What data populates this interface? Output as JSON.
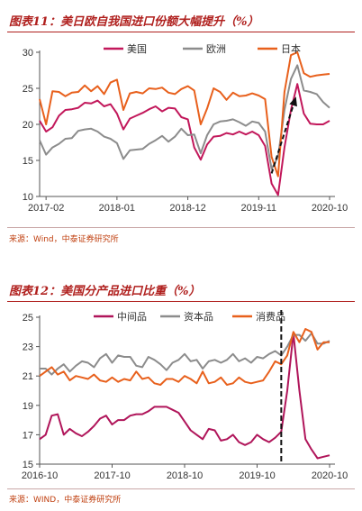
{
  "charts": [
    {
      "title": "图表11：美日欧自我国进口份额大幅提升（%）",
      "source": "来源：Wind，中泰证券研究所",
      "chart_data": {
        "type": "line",
        "ylim": [
          10,
          30
        ],
        "yticks": [
          10,
          15,
          20,
          25,
          30
        ],
        "xtick_labels": [
          "2017-02",
          "2018-01",
          "2018-12",
          "2019-11",
          "2020-10"
        ],
        "x": [
          "2017-01",
          "2017-02",
          "2017-03",
          "2017-04",
          "2017-05",
          "2017-06",
          "2017-07",
          "2017-08",
          "2017-09",
          "2017-10",
          "2017-11",
          "2017-12",
          "2018-01",
          "2018-02",
          "2018-03",
          "2018-04",
          "2018-05",
          "2018-06",
          "2018-07",
          "2018-08",
          "2018-09",
          "2018-10",
          "2018-11",
          "2018-12",
          "2019-01",
          "2019-02",
          "2019-03",
          "2019-04",
          "2019-05",
          "2019-06",
          "2019-07",
          "2019-08",
          "2019-09",
          "2019-10",
          "2019-11",
          "2019-12",
          "2020-01",
          "2020-02",
          "2020-03",
          "2020-04",
          "2020-05",
          "2020-06",
          "2020-07",
          "2020-08",
          "2020-09",
          "2020-10"
        ],
        "series": [
          {
            "name": "美国",
            "color": "#c2185b",
            "values": [
              20.5,
              19.0,
              19.6,
              21.2,
              22.0,
              22.1,
              22.3,
              23.0,
              22.9,
              23.3,
              22.5,
              22.8,
              21.5,
              19.3,
              20.8,
              21.2,
              21.6,
              22.1,
              22.5,
              21.8,
              22.3,
              22.2,
              21.0,
              20.7,
              16.8,
              15.1,
              17.2,
              18.3,
              18.4,
              18.8,
              18.6,
              19.0,
              18.6,
              19.0,
              18.5,
              17.0,
              11.8,
              10.2,
              16.8,
              22.0,
              25.6,
              21.5,
              20.1,
              20.0,
              20.0,
              20.5
            ]
          },
          {
            "name": "欧洲",
            "color": "#8c8c8c",
            "values": [
              17.8,
              15.8,
              16.8,
              17.3,
              18.0,
              18.1,
              19.1,
              19.3,
              19.4,
              19.0,
              18.3,
              18.0,
              17.4,
              15.2,
              16.4,
              16.5,
              16.6,
              17.3,
              17.8,
              18.4,
              17.6,
              18.3,
              19.4,
              18.5,
              18.6,
              16.0,
              18.5,
              20.0,
              20.4,
              20.5,
              20.7,
              20.3,
              19.8,
              20.4,
              20.2,
              19.0,
              13.8,
              15.5,
              22.0,
              26.3,
              28.2,
              24.7,
              24.5,
              24.2,
              23.1,
              22.3
            ]
          },
          {
            "name": "日本",
            "color": "#e8601c",
            "values": [
              23.5,
              20.0,
              24.6,
              24.5,
              23.9,
              24.4,
              24.5,
              25.4,
              24.6,
              25.3,
              24.2,
              25.8,
              26.2,
              22.0,
              24.3,
              24.5,
              24.3,
              25.0,
              24.9,
              25.1,
              24.4,
              24.2,
              24.9,
              25.3,
              24.7,
              20.0,
              22.2,
              25.0,
              24.5,
              23.4,
              24.4,
              23.9,
              24.0,
              24.3,
              24.0,
              23.5,
              15.5,
              12.8,
              24.5,
              29.6,
              30.0,
              27.1,
              26.6,
              26.8,
              26.9,
              27.0
            ]
          }
        ],
        "annotations": [
          "dashed-arrow"
        ]
      }
    },
    {
      "title": "图表12：美国分产品进口比重（%）",
      "source": "来源：WIND，中泰证券研究所",
      "chart_data": {
        "type": "line",
        "ylim": [
          15,
          25
        ],
        "yticks": [
          15,
          17,
          19,
          21,
          23,
          25
        ],
        "xtick_labels": [
          "2016-10",
          "2017-10",
          "2018-10",
          "2019-10",
          "2020-10"
        ],
        "x": [
          "2016-10",
          "2016-11",
          "2016-12",
          "2017-01",
          "2017-02",
          "2017-03",
          "2017-04",
          "2017-05",
          "2017-06",
          "2017-07",
          "2017-08",
          "2017-09",
          "2017-10",
          "2017-11",
          "2017-12",
          "2018-01",
          "2018-02",
          "2018-03",
          "2018-04",
          "2018-05",
          "2018-06",
          "2018-07",
          "2018-08",
          "2018-09",
          "2018-10",
          "2018-11",
          "2018-12",
          "2019-01",
          "2019-02",
          "2019-03",
          "2019-04",
          "2019-05",
          "2019-06",
          "2019-07",
          "2019-08",
          "2019-09",
          "2019-10",
          "2019-11",
          "2019-12",
          "2020-01",
          "2020-02",
          "2020-03",
          "2020-04",
          "2020-05",
          "2020-06",
          "2020-07",
          "2020-08",
          "2020-09",
          "2020-10"
        ],
        "series": [
          {
            "name": "中间品",
            "color": "#b0155a",
            "values": [
              16.7,
              17.0,
              18.3,
              18.4,
              17.0,
              17.4,
              17.1,
              16.9,
              17.2,
              17.6,
              18.1,
              18.3,
              17.7,
              18.0,
              18.0,
              18.3,
              18.4,
              18.4,
              18.6,
              18.9,
              18.9,
              18.9,
              18.7,
              18.5,
              17.9,
              17.3,
              17.0,
              16.7,
              17.4,
              17.3,
              16.6,
              16.7,
              17.0,
              16.5,
              16.3,
              16.5,
              17.0,
              16.7,
              16.5,
              16.8,
              17.2,
              20.0,
              23.9,
              20.0,
              16.7,
              16.0,
              15.4,
              15.5,
              15.6
            ]
          },
          {
            "name": "资本品",
            "color": "#8c8c8c",
            "values": [
              21.5,
              21.5,
              21.1,
              21.5,
              21.8,
              21.3,
              21.7,
              22.0,
              21.9,
              21.6,
              22.2,
              22.5,
              21.9,
              22.4,
              22.3,
              22.3,
              21.7,
              21.6,
              22.3,
              22.1,
              21.8,
              21.4,
              21.9,
              22.1,
              22.5,
              22.0,
              22.1,
              21.5,
              22.0,
              22.1,
              21.9,
              22.1,
              22.5,
              22.0,
              22.2,
              21.9,
              22.3,
              22.2,
              22.5,
              22.7,
              22.4,
              23.0,
              23.8,
              23.8,
              23.4,
              23.9,
              23.2,
              23.2,
              23.4
            ]
          },
          {
            "name": "消费品",
            "color": "#e8601c",
            "values": [
              21.0,
              21.3,
              21.6,
              21.1,
              21.3,
              20.7,
              21.0,
              20.9,
              20.8,
              21.1,
              20.7,
              20.6,
              20.9,
              20.6,
              20.8,
              20.7,
              21.3,
              20.8,
              20.9,
              20.5,
              20.4,
              20.8,
              20.8,
              20.6,
              21.0,
              20.8,
              20.5,
              21.3,
              20.5,
              20.6,
              20.9,
              20.4,
              20.5,
              20.9,
              20.6,
              20.5,
              20.6,
              20.7,
              21.3,
              22.0,
              21.8,
              22.4,
              24.0,
              23.3,
              24.2,
              24.0,
              22.8,
              23.3,
              23.3
            ]
          }
        ],
        "annotations": [
          "dashed-line"
        ]
      }
    }
  ]
}
